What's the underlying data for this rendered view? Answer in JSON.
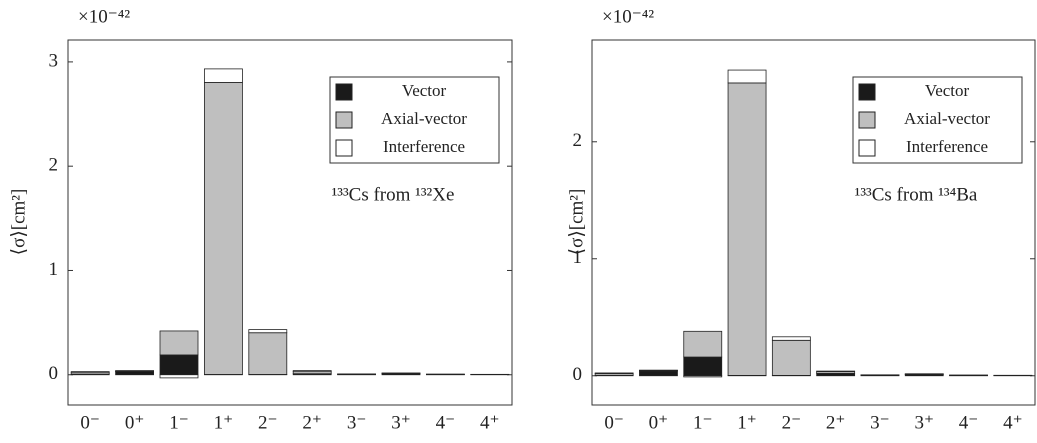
{
  "chart_data": [
    {
      "type": "stacked-bar",
      "multiplier": "×10⁻⁴²",
      "ylabel": "⟨σ⟩[cm²]",
      "annotation": "¹³³Cs from ¹³²Xe",
      "categories": [
        "0⁻",
        "0⁺",
        "1⁻",
        "1⁺",
        "2⁻",
        "2⁺",
        "3⁻",
        "3⁺",
        "4⁻",
        "4⁺"
      ],
      "series": [
        {
          "name": "Vector",
          "color": "#1a1a1a",
          "values": [
            0.005,
            0.03,
            0.19,
            0.003,
            0.003,
            0.01,
            0.004,
            0.01,
            0.003,
            0.002
          ]
        },
        {
          "name": "Axial-vector",
          "color": "#bfbfbf",
          "values": [
            0.015,
            0.005,
            0.23,
            2.8,
            0.4,
            0.02,
            0.003,
            0.005,
            0.002,
            0.001
          ]
        },
        {
          "name": "Interference",
          "color": "#ffffff",
          "values": [
            0.01,
            0.005,
            -0.03,
            0.13,
            0.03,
            0.01,
            0.001,
            0.002,
            0.001,
            0.001
          ]
        }
      ],
      "ylim": [
        -0.29,
        3.21
      ],
      "yticks": [
        0,
        1,
        2,
        3
      ],
      "legend": "upper right"
    },
    {
      "type": "stacked-bar",
      "multiplier": "×10⁻⁴²",
      "ylabel": "⟨σ⟩[cm²]",
      "annotation": "¹³³Cs from ¹³⁴Ba",
      "categories": [
        "0⁻",
        "0⁺",
        "1⁻",
        "1⁺",
        "2⁻",
        "2⁺",
        "3⁻",
        "3⁺",
        "4⁻",
        "4⁺"
      ],
      "series": [
        {
          "name": "Vector",
          "color": "#1a1a1a",
          "values": [
            0.004,
            0.04,
            0.16,
            0.003,
            0.003,
            0.02,
            0.004,
            0.01,
            0.003,
            0.002
          ]
        },
        {
          "name": "Axial-vector",
          "color": "#bfbfbf",
          "values": [
            0.015,
            0.005,
            0.22,
            2.5,
            0.3,
            0.015,
            0.003,
            0.005,
            0.002,
            0.001
          ]
        },
        {
          "name": "Interference",
          "color": "#ffffff",
          "values": [
            0.005,
            0.003,
            -0.01,
            0.11,
            0.03,
            0.005,
            0.001,
            0.002,
            0.001,
            0.001
          ]
        }
      ],
      "ylim": [
        -0.25,
        2.87
      ],
      "yticks": [
        0,
        1,
        2
      ],
      "legend": "upper right"
    }
  ]
}
